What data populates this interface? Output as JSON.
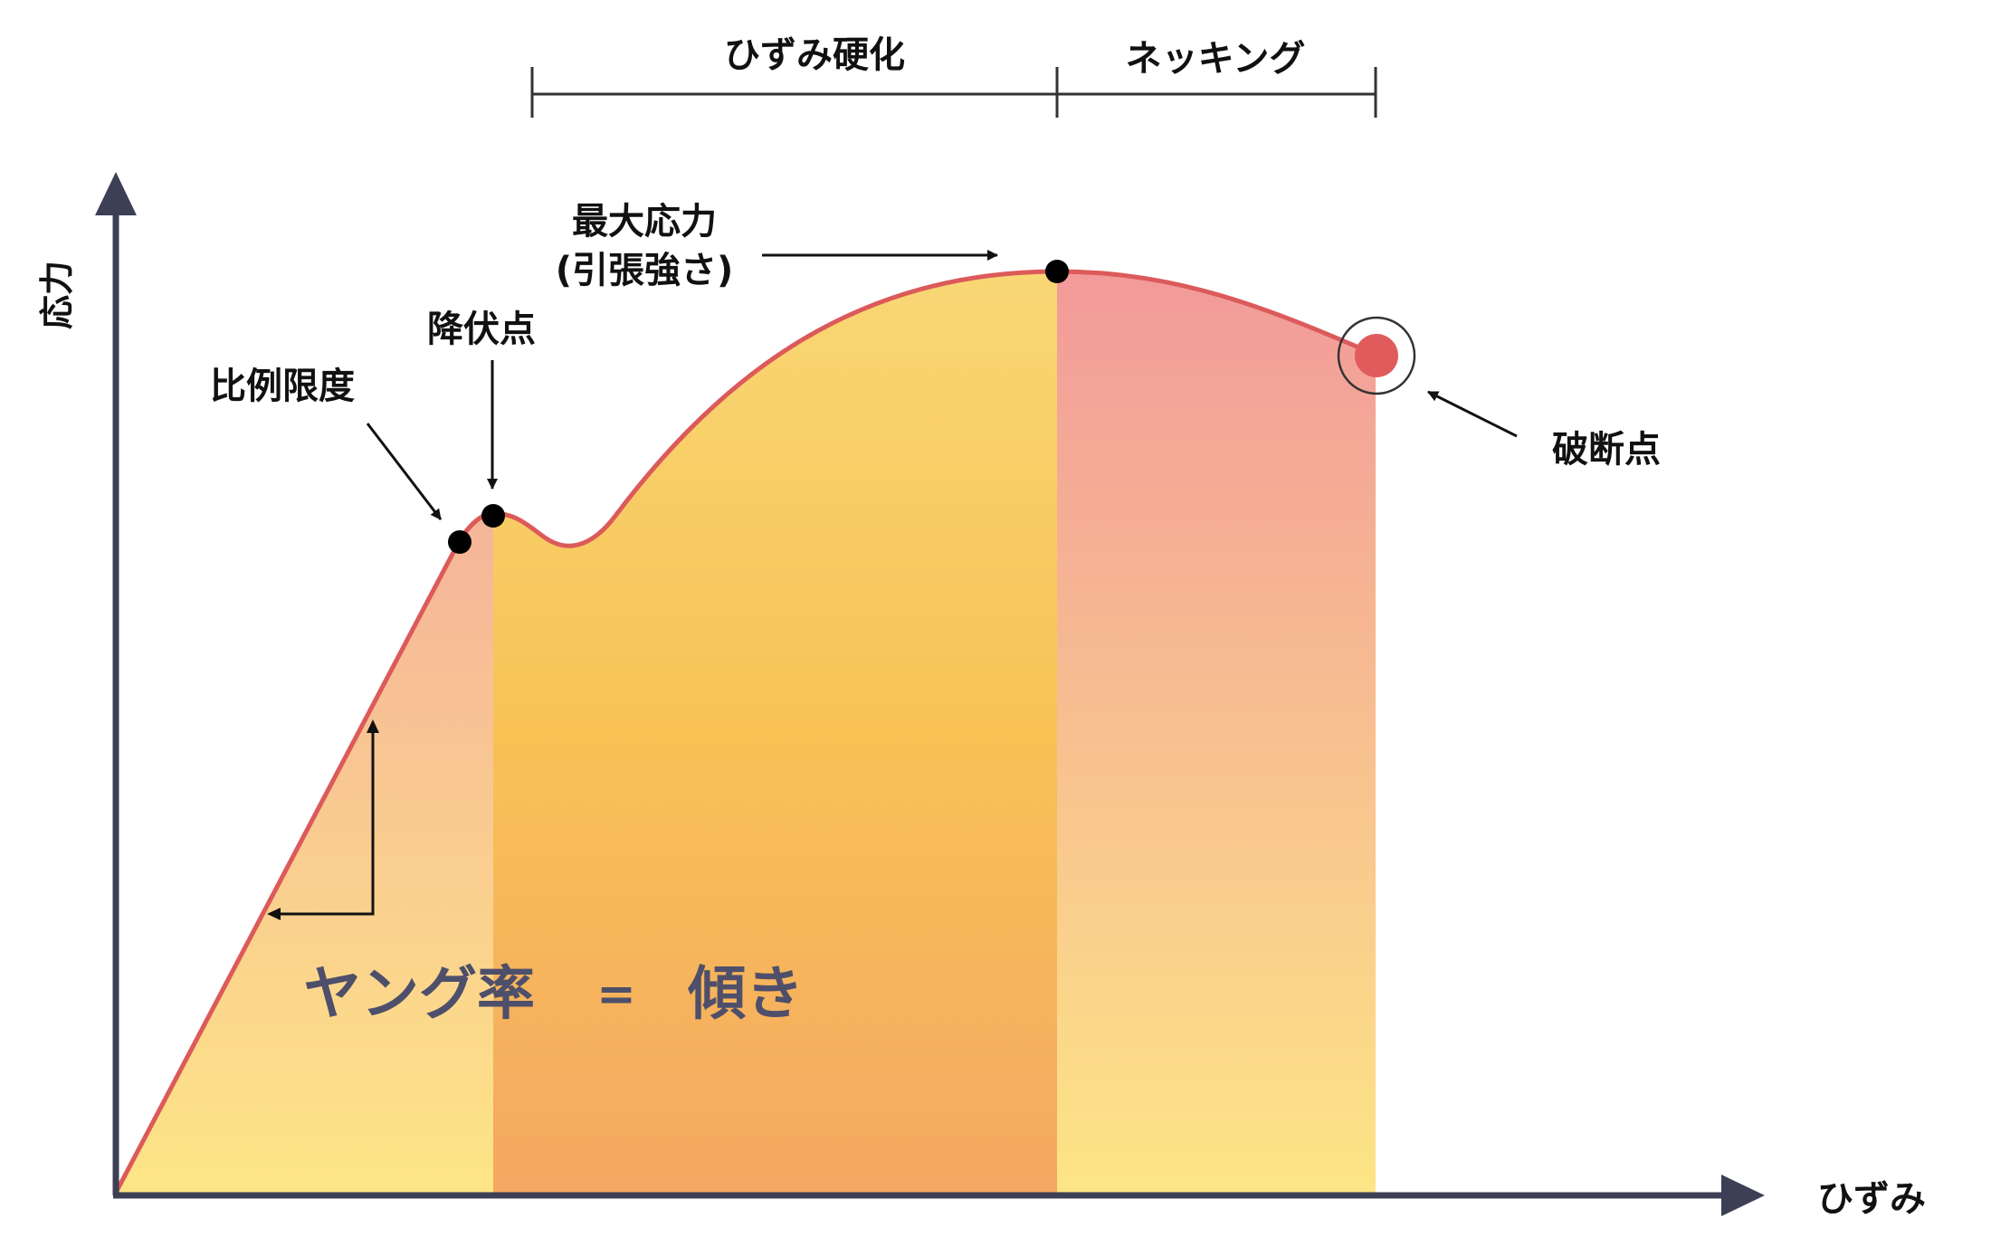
{
  "labels": {
    "y_axis": "応力",
    "x_axis": "ひずみ",
    "strain_hardening": "ひずみ硬化",
    "necking": "ネッキング",
    "max_stress_line1": "最大応力",
    "max_stress_line2": "(引張強さ)",
    "yield_point": "降伏点",
    "proportional_limit": "比例限度",
    "fracture_point": "破断点",
    "youngs_modulus": "ヤング率",
    "equals": "=",
    "slope": "傾き"
  },
  "colors": {
    "axis": "#3d3f55",
    "curve": "#dc5a5a",
    "formula_text": "#4e4f6b",
    "elastic_top": "#f6b49a",
    "elastic_bottom": "#fde586",
    "hardening_top": "#f9d775",
    "hardening_mid": "#f8c255",
    "hardening_bottom": "#f4a862",
    "necking_top": "#f29a9a",
    "necking_bottom": "#fde586",
    "fracture_marker": "#e05c5c"
  },
  "icons": {
    "points": "filled-circle",
    "fracture": "ringed-circle",
    "arrows": "arrowhead"
  }
}
